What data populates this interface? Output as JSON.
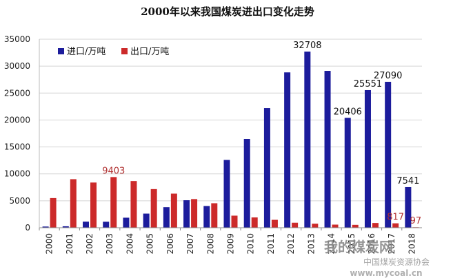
{
  "chart_data": {
    "type": "bar",
    "title": "2000年以来我国煤炭进出口变化走势",
    "categories": [
      "2000",
      "2001",
      "2002",
      "2003",
      "2004",
      "2005",
      "2006",
      "2007",
      "2008",
      "2009",
      "2010",
      "2011",
      "2012",
      "2013",
      "2014",
      "2015",
      "2016",
      "2017",
      "2018"
    ],
    "series": [
      {
        "name": "进口/万吨",
        "color": "#1c1c9c",
        "values": [
          218,
          266,
          1126,
          1110,
          1861,
          2617,
          3811,
          5102,
          4034,
          12584,
          16478,
          22220,
          28841,
          32708,
          29122,
          20406,
          25551,
          27090,
          7541
        ]
      },
      {
        "name": "出口/万吨",
        "color": "#cc2a2a",
        "values": [
          5506,
          9012,
          8390,
          9403,
          8666,
          7172,
          6327,
          5317,
          4543,
          2240,
          1910,
          1466,
          928,
          751,
          574,
          533,
          879,
          817,
          97
        ]
      }
    ],
    "data_labels": [
      {
        "series": 0,
        "index": 13,
        "text": "32708"
      },
      {
        "series": 0,
        "index": 15,
        "text": "20406"
      },
      {
        "series": 0,
        "index": 16,
        "text": "25551"
      },
      {
        "series": 0,
        "index": 17,
        "text": "27090"
      },
      {
        "series": 0,
        "index": 18,
        "text": "7541"
      },
      {
        "series": 1,
        "index": 3,
        "text": "9403"
      },
      {
        "series": 1,
        "index": 17,
        "text": "817"
      },
      {
        "series": 1,
        "index": 18,
        "text": "97"
      }
    ],
    "yticks": [
      0,
      5000,
      10000,
      15000,
      20000,
      25000,
      30000,
      35000
    ],
    "ylim": [
      0,
      35000
    ],
    "grid": true,
    "legend_position": "top-left"
  },
  "watermark": {
    "main": "我的煤炭网",
    "sub": "中国煤炭资源协会",
    "url": "www.mycoal.cn"
  }
}
